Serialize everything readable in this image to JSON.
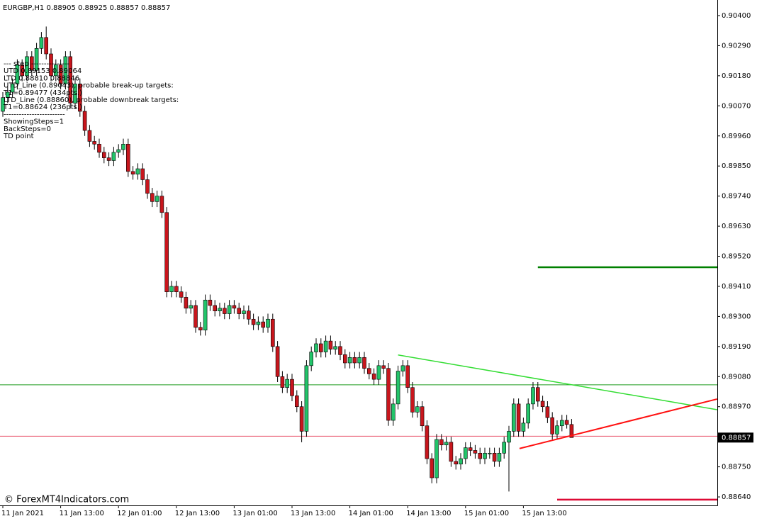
{
  "chart_data": {
    "type": "candlestick",
    "title": "EURGBP,H1  0.88905 0.88925 0.88857 0.88857",
    "categories": [
      "11 Jan 2021",
      null,
      null,
      null,
      null,
      null,
      null,
      null,
      null,
      null,
      null,
      null,
      "11 Jan 13:00",
      null,
      null,
      null,
      null,
      null,
      null,
      null,
      null,
      null,
      null,
      null,
      "12 Jan 01:00",
      null,
      null,
      null,
      null,
      null,
      null,
      null,
      null,
      null,
      null,
      null,
      "12 Jan 13:00",
      null,
      null,
      null,
      null,
      null,
      null,
      null,
      null,
      null,
      null,
      null,
      "13 Jan 01:00",
      null,
      null,
      null,
      null,
      null,
      null,
      null,
      null,
      null,
      null,
      null,
      "13 Jan 13:00",
      null,
      null,
      null,
      null,
      null,
      null,
      null,
      null,
      null,
      null,
      null,
      "14 Jan 01:00",
      null,
      null,
      null,
      null,
      null,
      null,
      null,
      null,
      null,
      null,
      null,
      "14 Jan 13:00",
      null,
      null,
      null,
      null,
      null,
      null,
      null,
      null,
      null,
      null,
      null,
      "15 Jan 01:00",
      null,
      null,
      null,
      null,
      null,
      null,
      null,
      null,
      null,
      null,
      null,
      "15 Jan 13:00",
      null,
      null,
      null,
      null,
      null,
      null,
      null,
      null,
      null,
      null
    ],
    "open": [
      0.9005,
      0.901,
      0.9012,
      0.9015,
      0.9022,
      0.9018,
      0.9025,
      0.902,
      0.9028,
      0.9032,
      0.9026,
      0.9018,
      0.9022,
      0.9015,
      0.9025,
      0.9008,
      0.9015,
      0.9005,
      0.8998,
      0.8994,
      0.8993,
      0.899,
      0.8988,
      0.8987,
      0.899,
      0.8991,
      0.8993,
      0.8983,
      0.8982,
      0.8984,
      0.898,
      0.8975,
      0.8972,
      0.8974,
      0.8968,
      0.8939,
      0.8941,
      0.8939,
      0.8937,
      0.8933,
      0.8934,
      0.8926,
      0.8925,
      0.8936,
      0.8934,
      0.8932,
      0.8933,
      0.8931,
      0.8934,
      0.8933,
      0.8931,
      0.8932,
      0.8929,
      0.8927,
      0.8928,
      0.8926,
      0.8929,
      0.8919,
      0.8908,
      0.8904,
      0.8907,
      0.8901,
      0.8897,
      0.8888,
      0.8912,
      0.8917,
      0.892,
      0.8917,
      0.8921,
      0.8918,
      0.8919,
      0.8916,
      0.8913,
      0.8915,
      0.8913,
      0.8915,
      0.8911,
      0.8909,
      0.8907,
      0.8912,
      0.8911,
      0.8892,
      0.8898,
      0.891,
      0.8912,
      0.8904,
      0.8895,
      0.8897,
      0.889,
      0.8878,
      0.8871,
      0.8885,
      0.8883,
      0.8884,
      0.8877,
      0.8876,
      0.8878,
      0.8882,
      0.8881,
      0.888,
      0.8878,
      0.888,
      0.888,
      0.8877,
      0.888,
      0.8884,
      0.8888,
      0.8898,
      0.8888,
      0.8891,
      0.8898,
      0.8904,
      0.8899,
      0.8897,
      0.8893,
      0.8887,
      0.889,
      0.8892,
      0.88905
    ],
    "high": [
      0.9012,
      0.9014,
      0.9017,
      0.9024,
      0.9024,
      0.9027,
      0.9027,
      0.903,
      0.9034,
      0.9036,
      0.9028,
      0.9024,
      0.9024,
      0.9027,
      0.9027,
      0.9017,
      0.9017,
      0.9007,
      0.9,
      0.8996,
      0.8995,
      0.8992,
      0.899,
      0.8992,
      0.8993,
      0.8995,
      0.8995,
      0.8985,
      0.8986,
      0.8986,
      0.8982,
      0.8977,
      0.8976,
      0.8976,
      0.897,
      0.8943,
      0.8943,
      0.8941,
      0.8939,
      0.8936,
      0.8936,
      0.8928,
      0.8938,
      0.8938,
      0.8936,
      0.8935,
      0.8935,
      0.8936,
      0.8936,
      0.8935,
      0.8934,
      0.8934,
      0.8931,
      0.893,
      0.893,
      0.8931,
      0.8931,
      0.8921,
      0.891,
      0.8909,
      0.8909,
      0.8903,
      0.8899,
      0.8914,
      0.8919,
      0.8922,
      0.8922,
      0.8923,
      0.8923,
      0.8921,
      0.8921,
      0.8918,
      0.8917,
      0.8917,
      0.8917,
      0.8917,
      0.8913,
      0.8911,
      0.8914,
      0.8914,
      0.8913,
      0.89,
      0.8912,
      0.8914,
      0.8914,
      0.8906,
      0.8899,
      0.8899,
      0.8892,
      0.888,
      0.8887,
      0.8887,
      0.8886,
      0.8886,
      0.8879,
      0.888,
      0.8884,
      0.8884,
      0.8883,
      0.8882,
      0.8882,
      0.8882,
      0.8882,
      0.8882,
      0.8886,
      0.889,
      0.89,
      0.89,
      0.8893,
      0.89,
      0.8906,
      0.8906,
      0.8901,
      0.8899,
      0.8895,
      0.8892,
      0.8894,
      0.8894,
      0.88925
    ],
    "low": [
      0.9003,
      0.9008,
      0.901,
      0.9013,
      0.9016,
      0.9016,
      0.9018,
      0.9018,
      0.9026,
      0.9024,
      0.9016,
      0.9016,
      0.9013,
      0.9013,
      0.9006,
      0.9006,
      0.9003,
      0.8996,
      0.8992,
      0.8991,
      0.8988,
      0.8986,
      0.8985,
      0.8985,
      0.8988,
      0.8989,
      0.8981,
      0.898,
      0.898,
      0.8978,
      0.8973,
      0.897,
      0.897,
      0.8966,
      0.8937,
      0.8937,
      0.8937,
      0.8935,
      0.8931,
      0.8931,
      0.8924,
      0.8923,
      0.8923,
      0.8932,
      0.893,
      0.893,
      0.8929,
      0.8929,
      0.8931,
      0.8929,
      0.8929,
      0.8927,
      0.8925,
      0.8925,
      0.8924,
      0.8924,
      0.8917,
      0.8906,
      0.8902,
      0.8902,
      0.8899,
      0.8895,
      0.8884,
      0.8886,
      0.891,
      0.8915,
      0.8915,
      0.8915,
      0.8916,
      0.8916,
      0.8914,
      0.8911,
      0.8911,
      0.8911,
      0.8911,
      0.8909,
      0.8907,
      0.8905,
      0.8905,
      0.8909,
      0.889,
      0.889,
      0.8896,
      0.8908,
      0.8902,
      0.8893,
      0.8893,
      0.8888,
      0.8876,
      0.8869,
      0.8869,
      0.8881,
      0.8881,
      0.8875,
      0.8874,
      0.8874,
      0.8876,
      0.8879,
      0.8878,
      0.8876,
      0.8876,
      0.8878,
      0.8875,
      0.8875,
      0.8878,
      0.8866,
      0.8886,
      0.8886,
      0.8886,
      0.8889,
      0.8896,
      0.8897,
      0.8895,
      0.8891,
      0.8885,
      0.8885,
      0.8888,
      0.8889,
      0.88857
    ],
    "close": [
      0.901,
      0.9012,
      0.9015,
      0.9022,
      0.9018,
      0.9025,
      0.902,
      0.9028,
      0.9032,
      0.9026,
      0.9018,
      0.9022,
      0.9015,
      0.9025,
      0.9008,
      0.9015,
      0.9005,
      0.8998,
      0.8994,
      0.8993,
      0.899,
      0.8988,
      0.8987,
      0.899,
      0.8991,
      0.8993,
      0.8983,
      0.8982,
      0.8984,
      0.898,
      0.8975,
      0.8972,
      0.8974,
      0.8968,
      0.8939,
      0.8941,
      0.8939,
      0.8937,
      0.8933,
      0.8934,
      0.8926,
      0.8925,
      0.8936,
      0.8934,
      0.8932,
      0.8933,
      0.8931,
      0.8934,
      0.8933,
      0.8931,
      0.8932,
      0.8929,
      0.8927,
      0.8928,
      0.8926,
      0.8929,
      0.8919,
      0.8908,
      0.8904,
      0.8907,
      0.8901,
      0.8897,
      0.8888,
      0.8912,
      0.8917,
      0.892,
      0.8917,
      0.8921,
      0.8918,
      0.8919,
      0.8916,
      0.8913,
      0.8915,
      0.8913,
      0.8915,
      0.8911,
      0.8909,
      0.8907,
      0.8912,
      0.8911,
      0.8892,
      0.8898,
      0.891,
      0.8912,
      0.8904,
      0.8895,
      0.8897,
      0.889,
      0.8878,
      0.8871,
      0.8885,
      0.8883,
      0.8884,
      0.8877,
      0.8876,
      0.8878,
      0.8882,
      0.8881,
      0.888,
      0.8878,
      0.888,
      0.888,
      0.8877,
      0.888,
      0.8884,
      0.8888,
      0.8898,
      0.8888,
      0.8891,
      0.8898,
      0.8904,
      0.8899,
      0.8897,
      0.8893,
      0.8887,
      0.889,
      0.8892,
      0.88905,
      0.88857
    ],
    "up_color": "#22c46a",
    "down_color": "#c8161d",
    "wick_color": "#000000",
    "ylim": [
      0.88609,
      0.90457
    ],
    "yticks": [
      {
        "value": 0.904,
        "label": "0.90400"
      },
      {
        "value": 0.9029,
        "label": "0.90290"
      },
      {
        "value": 0.9018,
        "label": "0.90180"
      },
      {
        "value": 0.9007,
        "label": "0.90070"
      },
      {
        "value": 0.8996,
        "label": "0.89960"
      },
      {
        "value": 0.8985,
        "label": "0.89850"
      },
      {
        "value": 0.8974,
        "label": "0.89740"
      },
      {
        "value": 0.8963,
        "label": "0.89630"
      },
      {
        "value": 0.8952,
        "label": "0.89520"
      },
      {
        "value": 0.8941,
        "label": "0.89410"
      },
      {
        "value": 0.893,
        "label": "0.89300"
      },
      {
        "value": 0.8919,
        "label": "0.89190"
      },
      {
        "value": 0.8908,
        "label": "0.89080"
      },
      {
        "value": 0.8897,
        "label": "0.88970"
      },
      {
        "value": 0.8875,
        "label": "0.88750"
      },
      {
        "value": 0.8864,
        "label": "0.88640"
      }
    ],
    "current_price": 0.88857,
    "levels": [
      {
        "value": 0.8905,
        "color": "#1a9a1a",
        "width": 1
      },
      {
        "value": 0.88862,
        "color": "#e8506a",
        "width": 1
      },
      {
        "value": 0.8948,
        "color": "#008000",
        "width": 2.5,
        "from": 111
      },
      {
        "value": 0.8863,
        "color": "#dd0a35",
        "width": 2.5,
        "from": 115
      }
    ],
    "trendlines": [
      {
        "color": "#33dd33",
        "width": 1.5,
        "x": [
          82,
          148.2
        ],
        "y": [
          0.89159,
          0.88959
        ]
      },
      {
        "color": "#ff1010",
        "width": 2,
        "x": [
          107.2,
          148.2
        ],
        "y": [
          0.88817,
          0.88998
        ]
      }
    ],
    "info_lines": [
      "---   step ---------------",
      "UTD  0.89153  0.89064",
      "LTD  0.88810  0.88846",
      "UTD_Line (0.89043), probable break-up targets:",
      "T1=0.89477 (434pts.)",
      "LTD_Line (0.88860), probable downbreak targets:",
      "T1=0.88624 (236pts.)",
      "------------------------",
      "ShowingSteps=1",
      "BackSteps=0",
      "TD point"
    ],
    "watermark": "© ForexMT4Indicators.com"
  }
}
